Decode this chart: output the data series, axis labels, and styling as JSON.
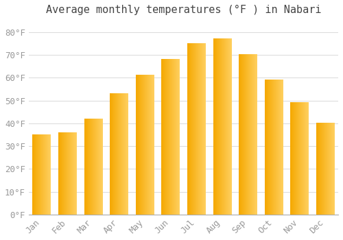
{
  "title": "Average monthly temperatures (°F ) in Nabari",
  "months": [
    "Jan",
    "Feb",
    "Mar",
    "Apr",
    "May",
    "Jun",
    "Jul",
    "Aug",
    "Sep",
    "Oct",
    "Nov",
    "Dec"
  ],
  "values": [
    35,
    36,
    42,
    53,
    61,
    68,
    75,
    77,
    70,
    59,
    49,
    40
  ],
  "bar_color_left": "#F5A800",
  "bar_color_right": "#FFD060",
  "background_color": "#FFFFFF",
  "plot_bg_color": "#FFFFFF",
  "grid_color": "#DDDDDD",
  "tick_color": "#999999",
  "title_color": "#444444",
  "ylim": [
    0,
    85
  ],
  "yticks": [
    0,
    10,
    20,
    30,
    40,
    50,
    60,
    70,
    80
  ],
  "ylabel_suffix": "°F",
  "title_fontsize": 11,
  "tick_fontsize": 9,
  "font_family": "monospace"
}
